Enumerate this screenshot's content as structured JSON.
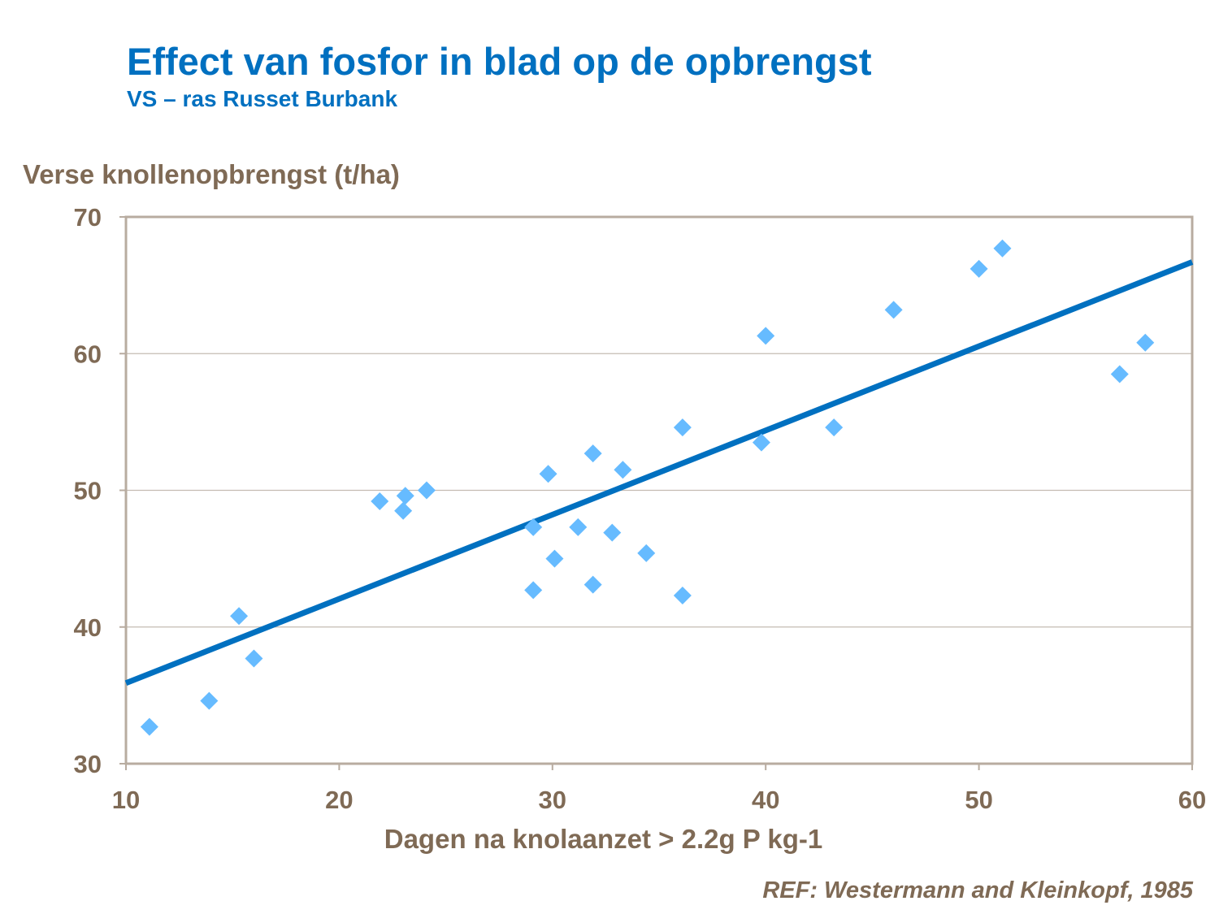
{
  "chart_data": {
    "type": "scatter",
    "title": "Effect van fosfor in blad op de opbrengst",
    "subtitle": "VS – ras Russet Burbank",
    "xlabel": "Dagen na knolaanzet > 2.2g P kg-1",
    "ylabel": "Verse knollenopbrengst (t/ha)",
    "xlim": [
      10,
      60
    ],
    "ylim": [
      30,
      70
    ],
    "xticks": [
      10,
      20,
      30,
      40,
      50,
      60
    ],
    "yticks": [
      30,
      40,
      50,
      60,
      70
    ],
    "grid": "horizontal",
    "points": [
      [
        11.1,
        32.7
      ],
      [
        13.9,
        34.6
      ],
      [
        15.3,
        40.8
      ],
      [
        16.0,
        37.7
      ],
      [
        21.9,
        49.2
      ],
      [
        23.0,
        48.5
      ],
      [
        23.1,
        49.6
      ],
      [
        24.1,
        50.0
      ],
      [
        29.1,
        42.7
      ],
      [
        29.1,
        47.3
      ],
      [
        29.8,
        51.2
      ],
      [
        30.1,
        45.0
      ],
      [
        31.2,
        47.3
      ],
      [
        31.9,
        43.1
      ],
      [
        31.9,
        52.7
      ],
      [
        32.8,
        46.9
      ],
      [
        33.3,
        51.5
      ],
      [
        34.4,
        45.4
      ],
      [
        36.1,
        42.3
      ],
      [
        36.1,
        54.6
      ],
      [
        39.8,
        53.5
      ],
      [
        40.0,
        61.3
      ],
      [
        43.2,
        54.6
      ],
      [
        46.0,
        63.2
      ],
      [
        50.0,
        66.2
      ],
      [
        51.1,
        67.7
      ],
      [
        56.6,
        58.5
      ],
      [
        57.8,
        60.8
      ]
    ],
    "trendline": {
      "type": "linear",
      "from": [
        10,
        35.9
      ],
      "to": [
        60,
        66.7
      ]
    },
    "colors": {
      "marker": "#66BBFF",
      "trendline": "#0070C0",
      "grid": "#C4BBB2",
      "axis": "#B8ACA0",
      "text": "#7F6A55",
      "title": "#0070C0"
    }
  },
  "reference": "REF: Westermann  and Kleinkopf,  1985"
}
